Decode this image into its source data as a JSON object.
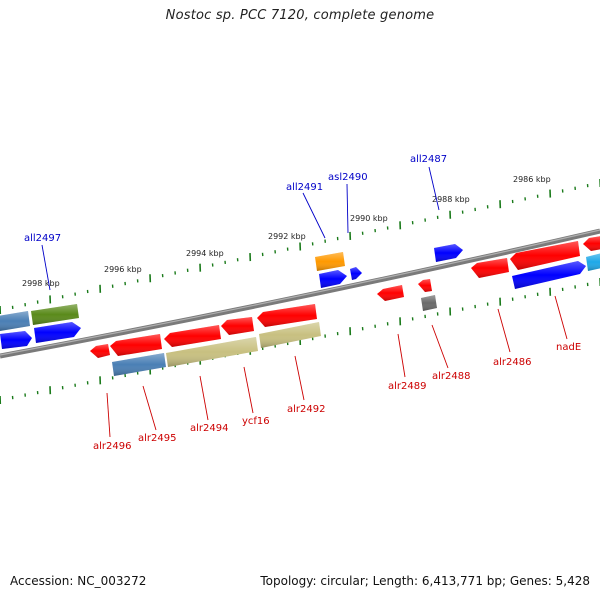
{
  "title": "Nostoc sp. PCC 7120, complete genome",
  "footer": {
    "accession": "Accession: NC_003272",
    "summary": "Topology: circular; Length: 6,413,771 bp; Genes: 5,428"
  },
  "colors": {
    "backbone": "#808080",
    "tick": "#1a7a1a",
    "forward_label": "#0000c8",
    "reverse_label": "#cc0000",
    "red": "#ff0000",
    "blue": "#0000ff",
    "olive": "#5a8a1a",
    "steelblue": "#4a7fb5",
    "khaki": "#c8c080",
    "orange": "#ff9900",
    "gray": "#6a6a6a",
    "cyan": "#1ea8e8"
  },
  "scale_labels": [
    "2998 kbp",
    "2996 kbp",
    "2994 kbp",
    "2992 kbp",
    "2990 kbp",
    "2988 kbp",
    "2986 kbp"
  ],
  "forward_genes": [
    {
      "name": "all2497",
      "color": "olive"
    },
    {
      "name": "all2491",
      "color": "orange"
    },
    {
      "name": "asl2490",
      "color": "blue"
    },
    {
      "name": "all2487",
      "color": "blue"
    }
  ],
  "reverse_genes": [
    {
      "name": "alr2496",
      "color": "red"
    },
    {
      "name": "alr2495",
      "color": "red"
    },
    {
      "name": "alr2494",
      "color": "red"
    },
    {
      "name": "ycf16",
      "color": "red"
    },
    {
      "name": "alr2492",
      "color": "red"
    },
    {
      "name": "alr2489",
      "color": "red"
    },
    {
      "name": "alr2488",
      "color": "red"
    },
    {
      "name": "alr2486",
      "color": "red"
    },
    {
      "name": "nadE",
      "color": "red"
    }
  ]
}
